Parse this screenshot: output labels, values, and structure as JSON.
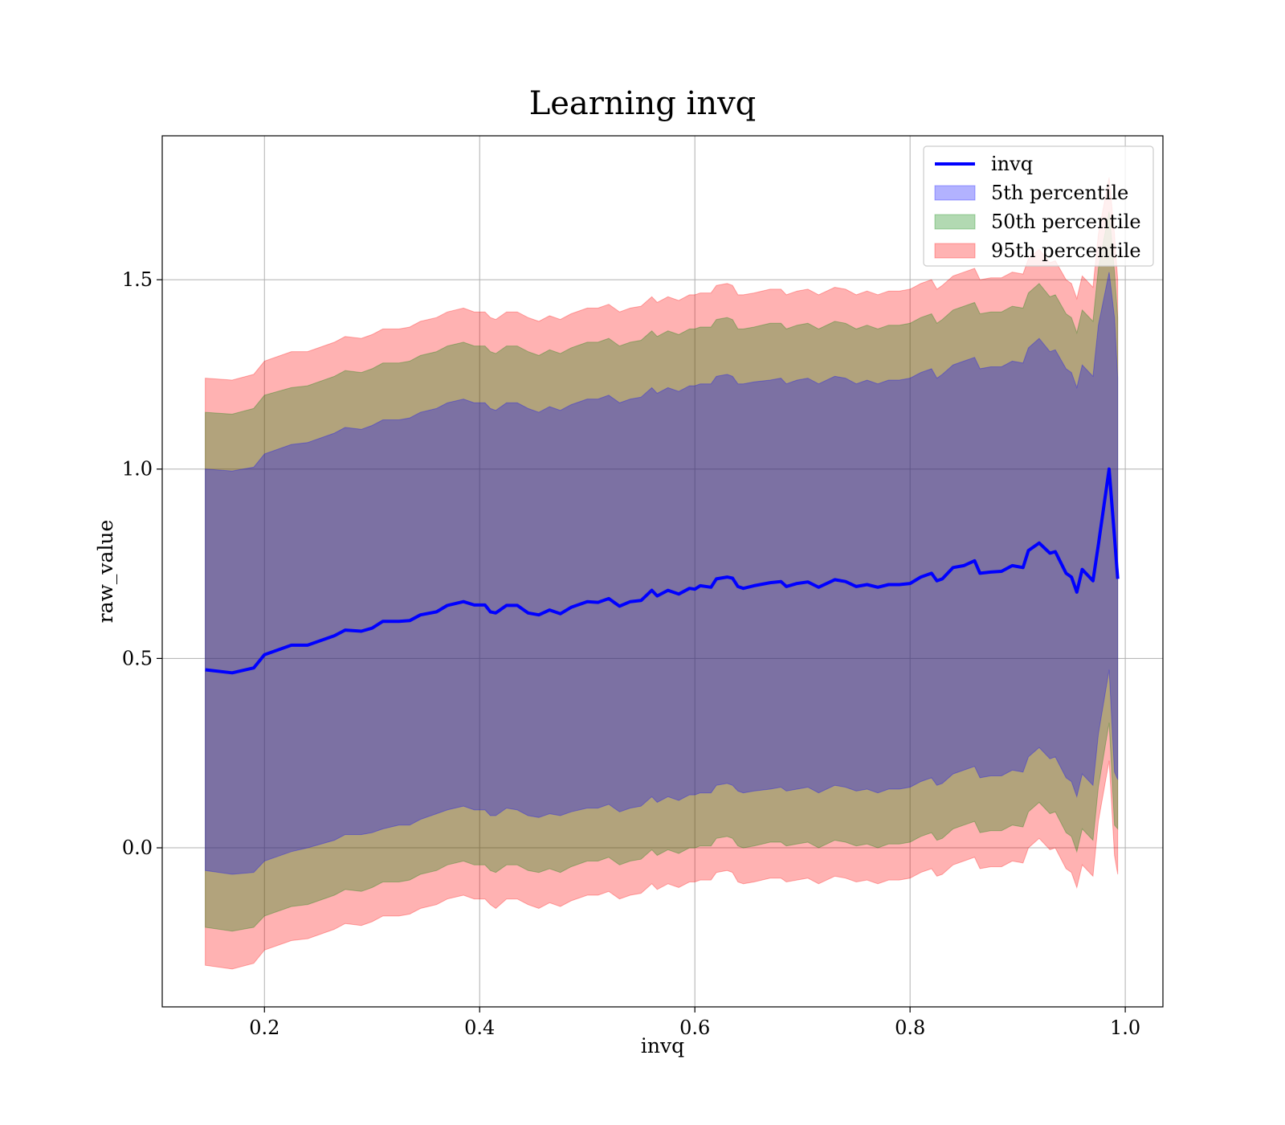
{
  "chart_data": {
    "type": "area",
    "title": "Learning invq",
    "xlabel": "invq",
    "ylabel": "raw_value",
    "xlim": [
      0.105,
      1.035
    ],
    "ylim": [
      -0.42,
      1.88
    ],
    "x_ticks": [
      0.2,
      0.4,
      0.6,
      0.8,
      1.0
    ],
    "x_tick_labels": [
      "0.2",
      "0.4",
      "0.6",
      "0.8",
      "1.0"
    ],
    "y_ticks": [
      0.0,
      0.5,
      1.0,
      1.5
    ],
    "y_tick_labels": [
      "0.0",
      "0.5",
      "1.0",
      "1.5"
    ],
    "grid": true,
    "legend_position": "upper right",
    "legend": [
      {
        "label": "invq",
        "kind": "line",
        "color": "#0000ff"
      },
      {
        "label": "5th percentile",
        "kind": "patch",
        "color": "#0000ff"
      },
      {
        "label": "50th percentile",
        "kind": "patch",
        "color": "#008000"
      },
      {
        "label": "95th percentile",
        "kind": "patch",
        "color": "#ff0000"
      }
    ],
    "x": [
      0.145,
      0.17,
      0.19,
      0.2,
      0.225,
      0.24,
      0.265,
      0.275,
      0.29,
      0.3,
      0.31,
      0.325,
      0.335,
      0.345,
      0.36,
      0.37,
      0.385,
      0.395,
      0.405,
      0.41,
      0.415,
      0.425,
      0.435,
      0.445,
      0.455,
      0.465,
      0.475,
      0.485,
      0.5,
      0.51,
      0.52,
      0.53,
      0.54,
      0.55,
      0.56,
      0.565,
      0.575,
      0.585,
      0.595,
      0.6,
      0.605,
      0.615,
      0.62,
      0.63,
      0.635,
      0.64,
      0.645,
      0.655,
      0.67,
      0.68,
      0.685,
      0.695,
      0.705,
      0.715,
      0.73,
      0.74,
      0.75,
      0.76,
      0.77,
      0.78,
      0.79,
      0.8,
      0.81,
      0.82,
      0.825,
      0.83,
      0.84,
      0.85,
      0.86,
      0.865,
      0.875,
      0.885,
      0.895,
      0.905,
      0.91,
      0.92,
      0.93,
      0.935,
      0.945,
      0.95,
      0.955,
      0.96,
      0.97,
      0.975,
      0.985,
      0.99,
      0.993
    ],
    "series": [
      {
        "name": "invq",
        "values": [
          0.47,
          0.462,
          0.475,
          0.51,
          0.535,
          0.535,
          0.56,
          0.575,
          0.572,
          0.58,
          0.598,
          0.598,
          0.6,
          0.615,
          0.623,
          0.64,
          0.65,
          0.641,
          0.641,
          0.623,
          0.62,
          0.64,
          0.64,
          0.62,
          0.615,
          0.628,
          0.618,
          0.635,
          0.65,
          0.648,
          0.658,
          0.638,
          0.65,
          0.653,
          0.68,
          0.665,
          0.68,
          0.67,
          0.685,
          0.683,
          0.692,
          0.688,
          0.71,
          0.715,
          0.712,
          0.69,
          0.685,
          0.692,
          0.7,
          0.703,
          0.69,
          0.698,
          0.702,
          0.688,
          0.708,
          0.703,
          0.69,
          0.695,
          0.688,
          0.695,
          0.695,
          0.698,
          0.715,
          0.725,
          0.705,
          0.71,
          0.74,
          0.745,
          0.758,
          0.725,
          0.728,
          0.73,
          0.745,
          0.74,
          0.785,
          0.805,
          0.778,
          0.782,
          0.725,
          0.715,
          0.675,
          0.735,
          0.705,
          0.8,
          1.0,
          0.82,
          0.71
        ]
      },
      {
        "name": "5th percentile",
        "lower": [
          -0.06,
          -0.07,
          -0.065,
          -0.035,
          -0.01,
          0.0,
          0.02,
          0.035,
          0.035,
          0.04,
          0.05,
          0.06,
          0.06,
          0.075,
          0.09,
          0.1,
          0.11,
          0.1,
          0.1,
          0.085,
          0.085,
          0.105,
          0.1,
          0.085,
          0.08,
          0.09,
          0.085,
          0.095,
          0.105,
          0.105,
          0.115,
          0.095,
          0.105,
          0.11,
          0.135,
          0.12,
          0.135,
          0.125,
          0.14,
          0.14,
          0.145,
          0.145,
          0.165,
          0.17,
          0.165,
          0.15,
          0.145,
          0.15,
          0.155,
          0.16,
          0.15,
          0.155,
          0.16,
          0.145,
          0.165,
          0.16,
          0.15,
          0.155,
          0.145,
          0.155,
          0.155,
          0.16,
          0.175,
          0.185,
          0.165,
          0.17,
          0.195,
          0.205,
          0.215,
          0.185,
          0.19,
          0.19,
          0.205,
          0.2,
          0.24,
          0.265,
          0.235,
          0.24,
          0.185,
          0.175,
          0.135,
          0.195,
          0.165,
          0.3,
          0.47,
          0.2,
          0.18
        ],
        "upper": [
          1.0,
          0.995,
          1.005,
          1.04,
          1.065,
          1.07,
          1.095,
          1.11,
          1.105,
          1.115,
          1.13,
          1.13,
          1.135,
          1.15,
          1.16,
          1.175,
          1.185,
          1.175,
          1.175,
          1.16,
          1.155,
          1.175,
          1.175,
          1.16,
          1.15,
          1.165,
          1.155,
          1.17,
          1.185,
          1.185,
          1.195,
          1.175,
          1.185,
          1.19,
          1.215,
          1.2,
          1.215,
          1.205,
          1.22,
          1.22,
          1.225,
          1.225,
          1.245,
          1.25,
          1.245,
          1.225,
          1.225,
          1.23,
          1.235,
          1.24,
          1.225,
          1.235,
          1.24,
          1.225,
          1.245,
          1.24,
          1.225,
          1.235,
          1.225,
          1.235,
          1.235,
          1.24,
          1.255,
          1.265,
          1.24,
          1.25,
          1.275,
          1.285,
          1.295,
          1.265,
          1.27,
          1.27,
          1.285,
          1.28,
          1.32,
          1.345,
          1.31,
          1.315,
          1.265,
          1.255,
          1.215,
          1.275,
          1.245,
          1.38,
          1.52,
          1.4,
          1.24
        ]
      },
      {
        "name": "50th percentile",
        "lower": [
          -0.21,
          -0.22,
          -0.21,
          -0.18,
          -0.155,
          -0.15,
          -0.125,
          -0.11,
          -0.115,
          -0.105,
          -0.09,
          -0.09,
          -0.085,
          -0.07,
          -0.06,
          -0.045,
          -0.035,
          -0.045,
          -0.045,
          -0.06,
          -0.065,
          -0.045,
          -0.045,
          -0.06,
          -0.065,
          -0.055,
          -0.065,
          -0.05,
          -0.035,
          -0.035,
          -0.025,
          -0.045,
          -0.035,
          -0.03,
          -0.005,
          -0.02,
          -0.005,
          -0.015,
          0.0,
          0.0,
          0.005,
          0.005,
          0.025,
          0.03,
          0.025,
          0.005,
          0.0,
          0.005,
          0.015,
          0.015,
          0.005,
          0.01,
          0.015,
          0.0,
          0.02,
          0.015,
          0.005,
          0.01,
          0.0,
          0.01,
          0.01,
          0.015,
          0.03,
          0.04,
          0.02,
          0.025,
          0.05,
          0.06,
          0.07,
          0.04,
          0.045,
          0.045,
          0.06,
          0.055,
          0.095,
          0.12,
          0.09,
          0.095,
          0.04,
          0.03,
          -0.01,
          0.05,
          0.02,
          0.16,
          0.33,
          0.06,
          0.05
        ],
        "upper": [
          1.15,
          1.145,
          1.16,
          1.195,
          1.215,
          1.22,
          1.245,
          1.26,
          1.255,
          1.265,
          1.28,
          1.28,
          1.285,
          1.3,
          1.31,
          1.325,
          1.335,
          1.325,
          1.325,
          1.31,
          1.305,
          1.325,
          1.325,
          1.31,
          1.3,
          1.315,
          1.305,
          1.32,
          1.335,
          1.335,
          1.345,
          1.325,
          1.335,
          1.34,
          1.365,
          1.35,
          1.365,
          1.355,
          1.37,
          1.37,
          1.375,
          1.375,
          1.395,
          1.4,
          1.395,
          1.37,
          1.37,
          1.375,
          1.385,
          1.385,
          1.37,
          1.38,
          1.385,
          1.37,
          1.39,
          1.385,
          1.37,
          1.38,
          1.37,
          1.38,
          1.38,
          1.385,
          1.4,
          1.41,
          1.385,
          1.395,
          1.42,
          1.43,
          1.44,
          1.41,
          1.415,
          1.415,
          1.43,
          1.425,
          1.465,
          1.49,
          1.455,
          1.46,
          1.41,
          1.4,
          1.36,
          1.42,
          1.39,
          1.53,
          1.68,
          1.52,
          1.4
        ]
      },
      {
        "name": "95th percentile",
        "lower": [
          -0.31,
          -0.32,
          -0.305,
          -0.27,
          -0.245,
          -0.24,
          -0.215,
          -0.2,
          -0.205,
          -0.195,
          -0.18,
          -0.18,
          -0.175,
          -0.16,
          -0.15,
          -0.135,
          -0.125,
          -0.135,
          -0.135,
          -0.15,
          -0.16,
          -0.135,
          -0.135,
          -0.15,
          -0.16,
          -0.145,
          -0.155,
          -0.14,
          -0.125,
          -0.125,
          -0.115,
          -0.135,
          -0.125,
          -0.12,
          -0.095,
          -0.11,
          -0.095,
          -0.105,
          -0.09,
          -0.09,
          -0.085,
          -0.085,
          -0.065,
          -0.06,
          -0.065,
          -0.09,
          -0.095,
          -0.09,
          -0.08,
          -0.08,
          -0.09,
          -0.085,
          -0.08,
          -0.095,
          -0.075,
          -0.08,
          -0.09,
          -0.085,
          -0.095,
          -0.085,
          -0.085,
          -0.08,
          -0.065,
          -0.055,
          -0.075,
          -0.07,
          -0.045,
          -0.035,
          -0.025,
          -0.055,
          -0.05,
          -0.05,
          -0.035,
          -0.04,
          0.0,
          0.025,
          -0.005,
          0.0,
          -0.055,
          -0.065,
          -0.105,
          -0.045,
          -0.075,
          0.07,
          0.23,
          -0.02,
          -0.07
        ],
        "upper": [
          1.24,
          1.235,
          1.25,
          1.285,
          1.31,
          1.31,
          1.335,
          1.35,
          1.345,
          1.355,
          1.37,
          1.37,
          1.375,
          1.39,
          1.4,
          1.415,
          1.425,
          1.415,
          1.415,
          1.4,
          1.395,
          1.415,
          1.415,
          1.4,
          1.39,
          1.405,
          1.395,
          1.41,
          1.425,
          1.425,
          1.435,
          1.415,
          1.425,
          1.43,
          1.455,
          1.44,
          1.455,
          1.445,
          1.46,
          1.46,
          1.465,
          1.465,
          1.485,
          1.49,
          1.485,
          1.46,
          1.46,
          1.465,
          1.475,
          1.475,
          1.46,
          1.47,
          1.475,
          1.46,
          1.48,
          1.475,
          1.46,
          1.47,
          1.46,
          1.47,
          1.47,
          1.475,
          1.49,
          1.5,
          1.475,
          1.485,
          1.51,
          1.52,
          1.53,
          1.5,
          1.505,
          1.505,
          1.52,
          1.515,
          1.555,
          1.58,
          1.545,
          1.55,
          1.5,
          1.49,
          1.45,
          1.51,
          1.48,
          1.62,
          1.77,
          1.62,
          1.5
        ]
      }
    ],
    "band_colors": {
      "5th percentile": "#0000ff",
      "50th percentile": "#008000",
      "95th percentile": "#ff0000"
    },
    "line_color": "#0000ff"
  }
}
